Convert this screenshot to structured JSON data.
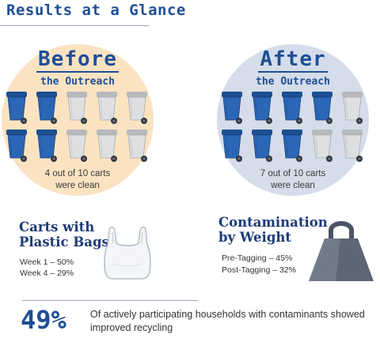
{
  "title": "Results at a Glance",
  "before": {
    "heading": "Before",
    "subheading": "the Outreach",
    "caption_line1": "4 out of 10 carts",
    "caption_line2": "were clean",
    "clean_carts": 4,
    "total_carts": 10
  },
  "after": {
    "heading": "After",
    "subheading": "the Outreach",
    "caption_line1": "7 out of 10 carts",
    "caption_line2": "were clean",
    "clean_carts": 7,
    "total_carts": 10
  },
  "plastic_bags": {
    "heading_line1": "Carts with",
    "heading_line2": "Plastic Bags",
    "lines": [
      "Week 1 – 50%",
      "Week 4 – 29%"
    ],
    "icon": "plastic-bag-icon"
  },
  "contamination": {
    "heading_line1": "Contamination",
    "heading_line2": "by Weight",
    "lines": [
      "Pre-Tagging – 45%",
      "Post-Tagging – 32%"
    ],
    "icon": "weight-icon"
  },
  "stat": {
    "percent": "49%",
    "text": "Of actively participating households with contaminants showed improved recycling"
  },
  "colors": {
    "brand_blue": "#1f4e96",
    "cart_blue": "#2b67b6",
    "cart_gray": "#dedfe0",
    "before_bg": "#fbe3c2",
    "after_bg": "#d4dde9"
  }
}
